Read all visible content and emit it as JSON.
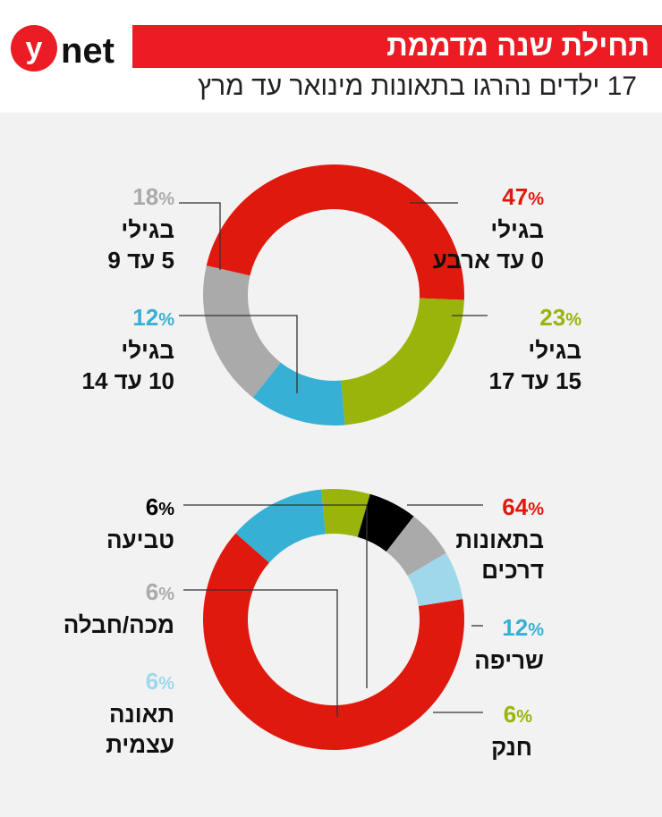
{
  "header": {
    "logo": "ynet",
    "title": "תחילת שנה מדממת",
    "subtitle": "17 ילדים נהרגו בתאונות מינואר עד מרץ"
  },
  "colors": {
    "red": "#e0190e",
    "green": "#9bb40b",
    "blue": "#37b0d5",
    "gray": "#aaaaaa",
    "black": "#000000",
    "lightblue": "#9fd8eb",
    "brand": "#ec1c24"
  },
  "chart_data": [
    {
      "type": "pie",
      "donut": true,
      "title": "",
      "categories": [
        "בגילי 0 עד ארבע",
        "בגילי 15 עד 17",
        "בגילי 10 עד 14",
        "בגילי 5 עד 9"
      ],
      "values": [
        47,
        23,
        12,
        18
      ],
      "colors": [
        "#e0190e",
        "#9bb40b",
        "#37b0d5",
        "#aaaaaa"
      ],
      "labels": [
        {
          "pct": "47",
          "line1": "בגילי",
          "line2": "0 עד ארבע",
          "color": "#e0190e"
        },
        {
          "pct": "23",
          "line1": "בגילי",
          "line2": "15 עד 17",
          "color": "#9bb40b"
        },
        {
          "pct": "12",
          "line1": "בגילי",
          "line2": "10 עד 14",
          "color": "#37b0d5"
        },
        {
          "pct": "18",
          "line1": "בגילי",
          "line2": "5 עד 9",
          "color": "#aaaaaa"
        }
      ]
    },
    {
      "type": "pie",
      "donut": true,
      "title": "",
      "categories": [
        "בתאונות דרכים",
        "שריפה",
        "חנק",
        "טביעה",
        "מכה/חבלה",
        "תאונה עצמית"
      ],
      "values": [
        64,
        12,
        6,
        6,
        6,
        6
      ],
      "colors": [
        "#e0190e",
        "#37b0d5",
        "#9bb40b",
        "#000000",
        "#aaaaaa",
        "#9fd8eb"
      ],
      "labels": [
        {
          "pct": "64",
          "line1": "בתאונות",
          "line2": "דרכים",
          "color": "#e0190e"
        },
        {
          "pct": "12",
          "line1": "שריפה",
          "line2": "",
          "color": "#37b0d5"
        },
        {
          "pct": "6",
          "line1": "חנק",
          "line2": "",
          "color": "#9bb40b"
        },
        {
          "pct": "6",
          "line1": "טביעה",
          "line2": "",
          "color": "#000000"
        },
        {
          "pct": "6",
          "line1": "מכה/חבלה",
          "line2": "",
          "color": "#aaaaaa"
        },
        {
          "pct": "6",
          "line1": "תאונה",
          "line2": "עצמית",
          "color": "#9fd8eb"
        }
      ]
    }
  ]
}
